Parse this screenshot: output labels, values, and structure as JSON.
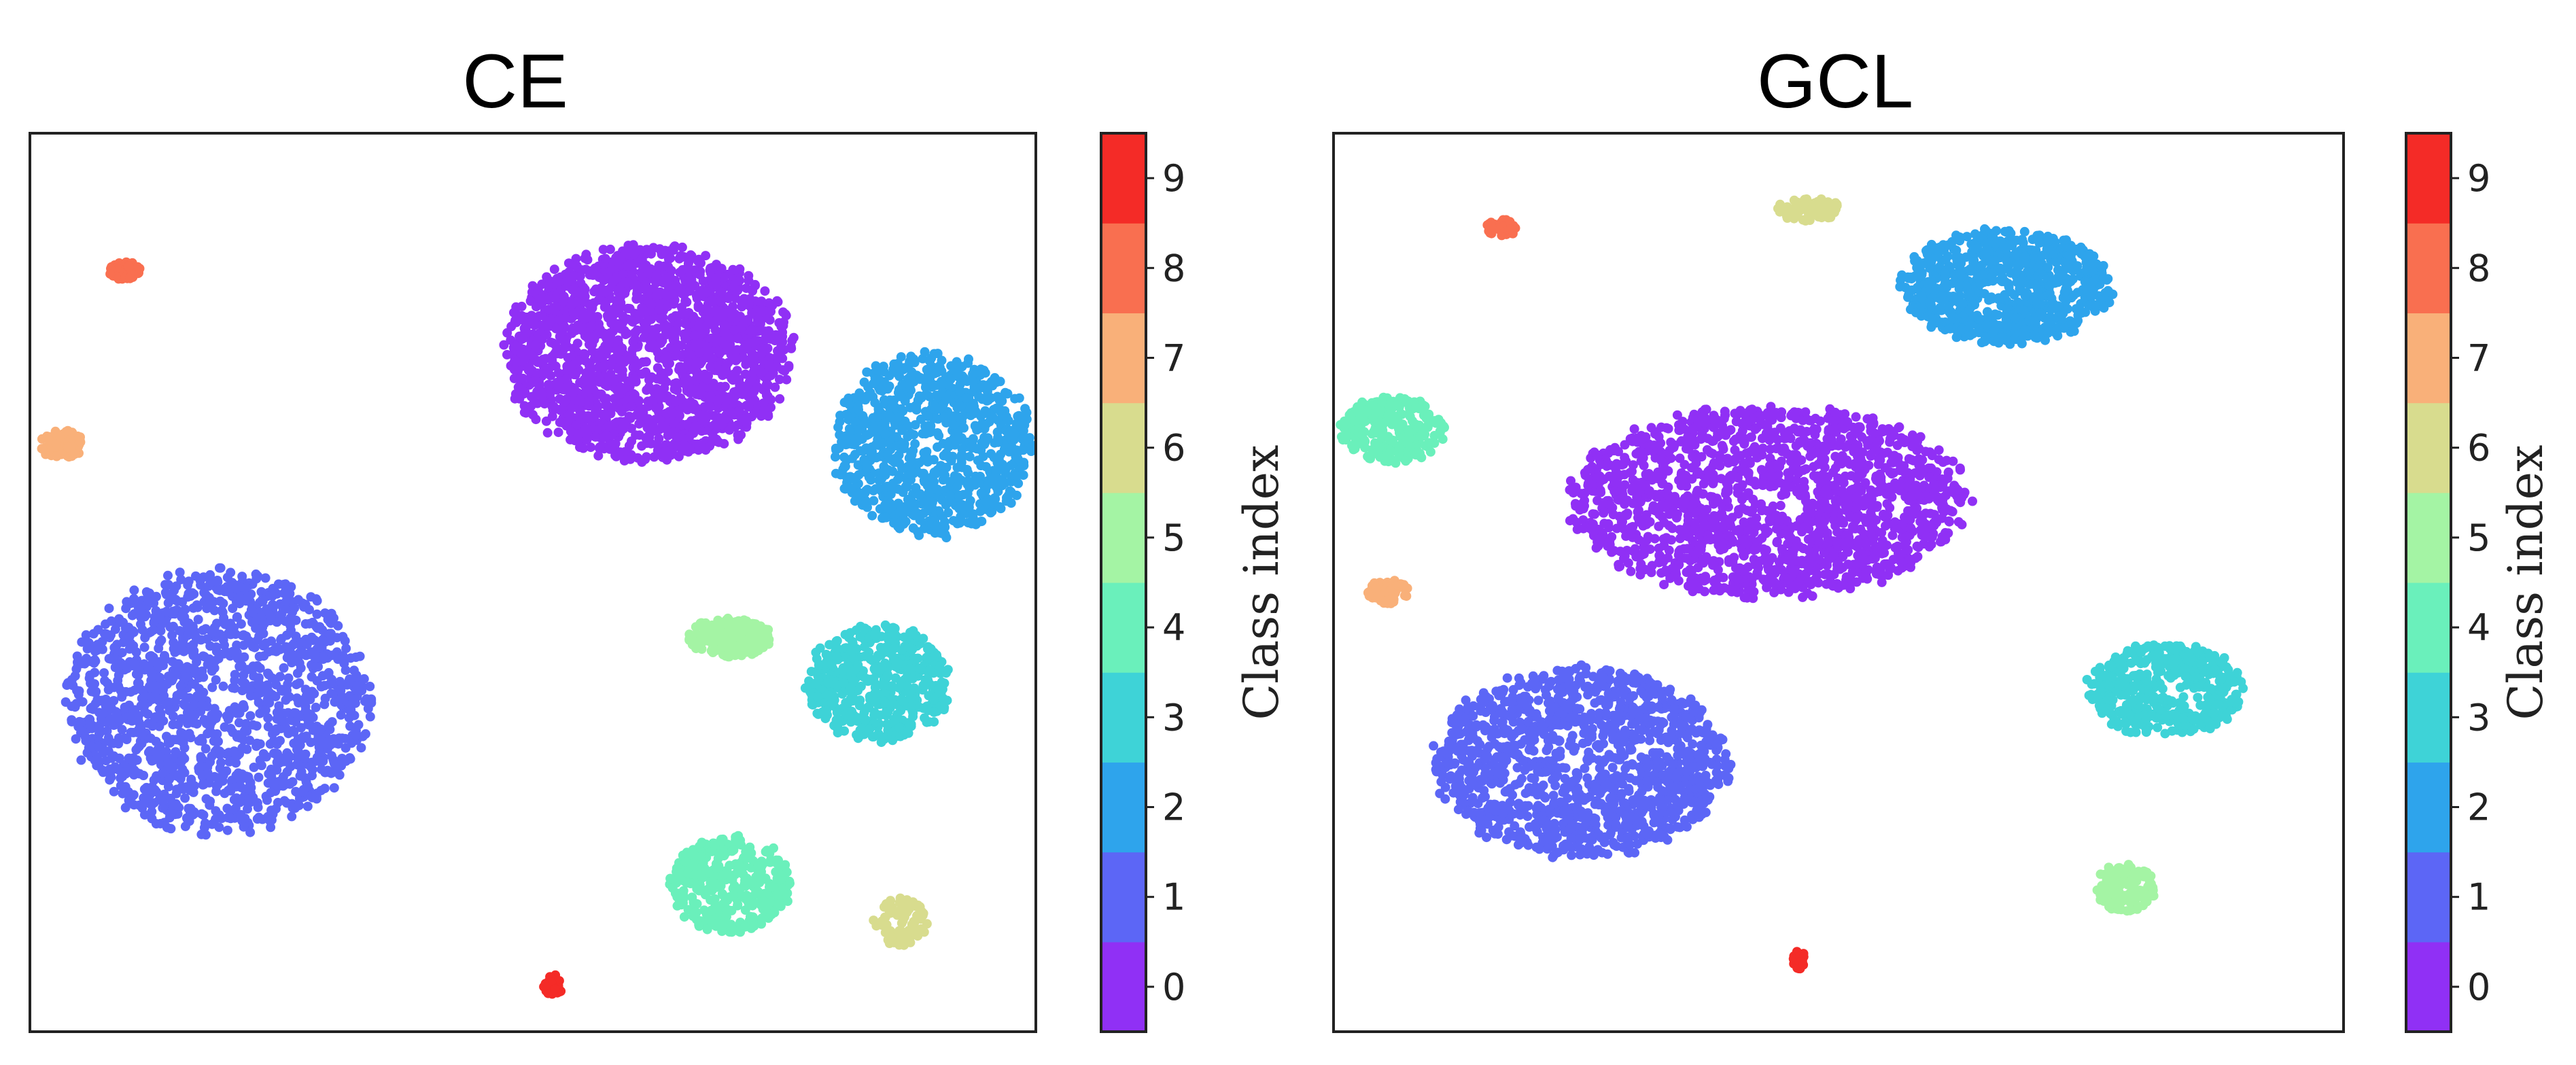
{
  "chart_data": [
    {
      "type": "scatter",
      "title": "CE",
      "xlabel": "",
      "ylabel": "",
      "colorbar": {
        "label": "Class index",
        "ticks": [
          0,
          1,
          2,
          3,
          4,
          5,
          6,
          7,
          8,
          9
        ],
        "colors": [
          "#9030f5",
          "#5c66f6",
          "#2ea4ec",
          "#3ed3d7",
          "#6af0bb",
          "#a4f4a4",
          "#d8dc8e",
          "#f9b079",
          "#f96f50",
          "#f42b27"
        ]
      },
      "clusters": [
        {
          "class": 0,
          "cx": 0.46,
          "cy": 0.42,
          "rx": 0.26,
          "ry": 0.22,
          "n": 1800
        },
        {
          "class": 1,
          "cx": -0.36,
          "cy": -0.34,
          "rx": 0.27,
          "ry": 0.27,
          "n": 1500
        },
        {
          "class": 2,
          "cx": 1.0,
          "cy": 0.22,
          "rx": 0.18,
          "ry": 0.19,
          "n": 900
        },
        {
          "class": 3,
          "cx": 0.9,
          "cy": -0.3,
          "rx": 0.13,
          "ry": 0.12,
          "n": 500
        },
        {
          "class": 4,
          "cx": 0.62,
          "cy": -0.74,
          "rx": 0.11,
          "ry": 0.1,
          "n": 380
        },
        {
          "class": 5,
          "cx": 0.62,
          "cy": -0.2,
          "rx": 0.08,
          "ry": 0.04,
          "n": 200
        },
        {
          "class": 6,
          "cx": 0.94,
          "cy": -0.82,
          "rx": 0.05,
          "ry": 0.05,
          "n": 90
        },
        {
          "class": 7,
          "cx": -0.66,
          "cy": 0.22,
          "rx": 0.04,
          "ry": 0.03,
          "n": 70
        },
        {
          "class": 8,
          "cx": -0.54,
          "cy": 0.6,
          "rx": 0.03,
          "ry": 0.018,
          "n": 50
        },
        {
          "class": 9,
          "cx": 0.28,
          "cy": -0.96,
          "rx": 0.018,
          "ry": 0.022,
          "n": 30
        }
      ],
      "xlim": [
        -0.72,
        1.2
      ],
      "ylim": [
        -1.06,
        0.9
      ]
    },
    {
      "type": "scatter",
      "title": "GCL",
      "xlabel": "",
      "ylabel": "",
      "colorbar": {
        "label": "Class index",
        "ticks": [
          0,
          1,
          2,
          3,
          4,
          5,
          6,
          7,
          8,
          9
        ],
        "colors": [
          "#9030f5",
          "#5c66f6",
          "#2ea4ec",
          "#3ed3d7",
          "#6af0bb",
          "#a4f4a4",
          "#d8dc8e",
          "#f9b079",
          "#f96f50",
          "#f42b27"
        ]
      },
      "clusters": [
        {
          "class": 0,
          "cx": 0.46,
          "cy": 0.08,
          "rx": 0.38,
          "ry": 0.2,
          "n": 1700
        },
        {
          "class": 1,
          "cx": 0.08,
          "cy": -0.5,
          "rx": 0.28,
          "ry": 0.2,
          "n": 1300
        },
        {
          "class": 2,
          "cx": 0.94,
          "cy": 0.56,
          "rx": 0.2,
          "ry": 0.12,
          "n": 800
        },
        {
          "class": 3,
          "cx": 1.26,
          "cy": -0.34,
          "rx": 0.15,
          "ry": 0.1,
          "n": 450
        },
        {
          "class": 4,
          "cx": -0.3,
          "cy": 0.24,
          "rx": 0.1,
          "ry": 0.07,
          "n": 250
        },
        {
          "class": 5,
          "cx": 1.18,
          "cy": -0.78,
          "rx": 0.06,
          "ry": 0.05,
          "n": 140
        },
        {
          "class": 6,
          "cx": 0.54,
          "cy": 0.73,
          "rx": 0.06,
          "ry": 0.025,
          "n": 90
        },
        {
          "class": 7,
          "cx": -0.31,
          "cy": -0.12,
          "rx": 0.04,
          "ry": 0.025,
          "n": 70
        },
        {
          "class": 8,
          "cx": -0.08,
          "cy": 0.69,
          "rx": 0.03,
          "ry": 0.018,
          "n": 45
        },
        {
          "class": 9,
          "cx": 0.52,
          "cy": -0.94,
          "rx": 0.012,
          "ry": 0.022,
          "n": 25
        }
      ],
      "xlim": [
        -0.42,
        1.62
      ],
      "ylim": [
        -1.1,
        0.9
      ]
    }
  ]
}
